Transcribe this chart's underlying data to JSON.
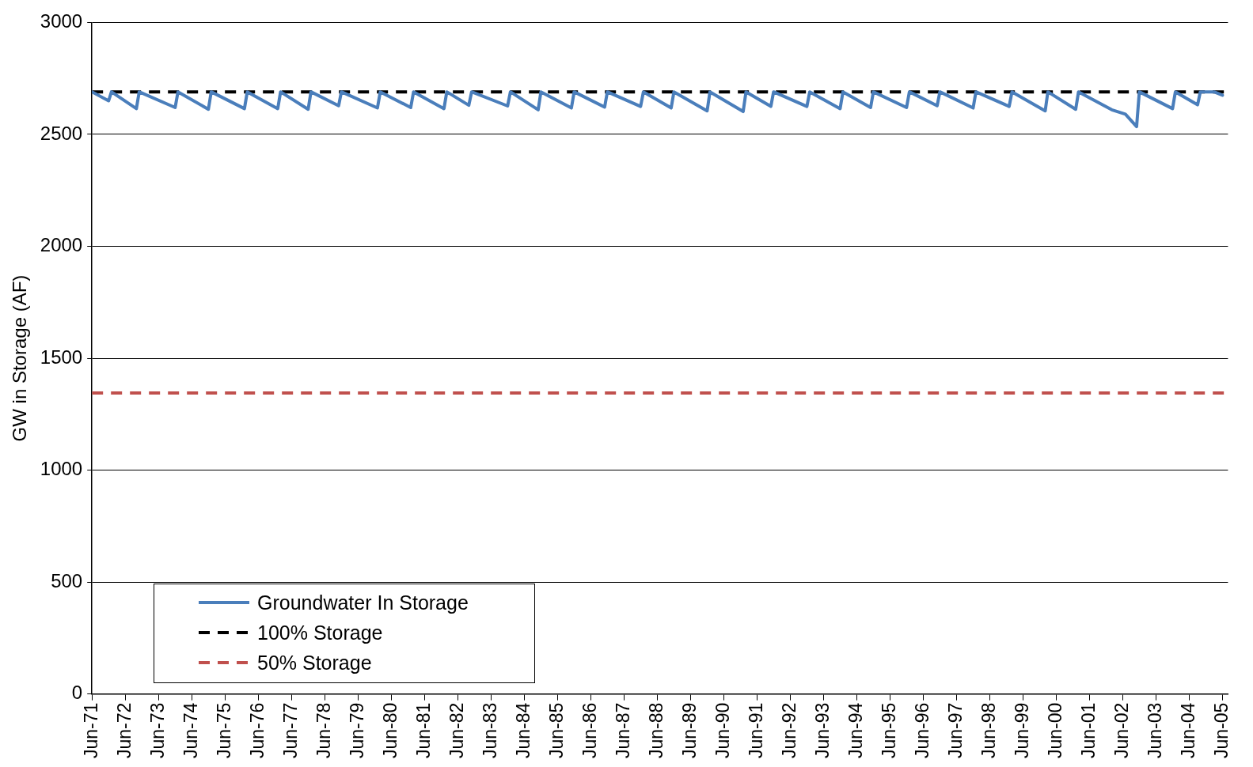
{
  "chart_data": {
    "type": "line",
    "ylabel": "GW in Storage (AF)",
    "xlim": [
      "1971-06",
      "2005-08"
    ],
    "ylim": [
      0,
      3000
    ],
    "yticks": [
      0,
      500,
      1000,
      1500,
      2000,
      2500,
      3000
    ],
    "xticks": [
      {
        "value": "1971-06",
        "label": "Jun-71"
      },
      {
        "value": "1972-06",
        "label": "Jun-72"
      },
      {
        "value": "1973-06",
        "label": "Jun-73"
      },
      {
        "value": "1974-06",
        "label": "Jun-74"
      },
      {
        "value": "1975-06",
        "label": "Jun-75"
      },
      {
        "value": "1976-06",
        "label": "Jun-76"
      },
      {
        "value": "1977-06",
        "label": "Jun-77"
      },
      {
        "value": "1978-06",
        "label": "Jun-78"
      },
      {
        "value": "1979-06",
        "label": "Jun-79"
      },
      {
        "value": "1980-06",
        "label": "Jun-80"
      },
      {
        "value": "1981-06",
        "label": "Jun-81"
      },
      {
        "value": "1982-06",
        "label": "Jun-82"
      },
      {
        "value": "1983-06",
        "label": "Jun-83"
      },
      {
        "value": "1984-06",
        "label": "Jun-84"
      },
      {
        "value": "1985-06",
        "label": "Jun-85"
      },
      {
        "value": "1986-06",
        "label": "Jun-86"
      },
      {
        "value": "1987-06",
        "label": "Jun-87"
      },
      {
        "value": "1988-06",
        "label": "Jun-88"
      },
      {
        "value": "1989-06",
        "label": "Jun-89"
      },
      {
        "value": "1990-06",
        "label": "Jun-90"
      },
      {
        "value": "1991-06",
        "label": "Jun-91"
      },
      {
        "value": "1992-06",
        "label": "Jun-92"
      },
      {
        "value": "1993-06",
        "label": "Jun-93"
      },
      {
        "value": "1994-06",
        "label": "Jun-94"
      },
      {
        "value": "1995-06",
        "label": "Jun-95"
      },
      {
        "value": "1996-06",
        "label": "Jun-96"
      },
      {
        "value": "1997-06",
        "label": "Jun-97"
      },
      {
        "value": "1998-06",
        "label": "Jun-98"
      },
      {
        "value": "1999-06",
        "label": "Jun-99"
      },
      {
        "value": "2000-06",
        "label": "Jun-00"
      },
      {
        "value": "2001-06",
        "label": "Jun-01"
      },
      {
        "value": "2002-06",
        "label": "Jun-02"
      },
      {
        "value": "2003-06",
        "label": "Jun-03"
      },
      {
        "value": "2004-06",
        "label": "Jun-04"
      },
      {
        "value": "2005-06",
        "label": "Jun-05"
      }
    ],
    "grid": "y",
    "legend": "bottom left",
    "line_style": "solid",
    "marker": "none",
    "series": [
      {
        "name": "Groundwater In Storage",
        "color": "#4a7ebb",
        "x": [
          "1971-06",
          "1971-12",
          "1972-01",
          "1972-10",
          "1972-11",
          "1973-12",
          "1974-01",
          "1974-12",
          "1975-01",
          "1976-01",
          "1976-02",
          "1977-01",
          "1977-02",
          "1977-12",
          "1978-01",
          "1978-11",
          "1978-12",
          "1980-01",
          "1980-02",
          "1981-01",
          "1981-02",
          "1982-01",
          "1982-02",
          "1982-10",
          "1982-11",
          "1983-12",
          "1984-01",
          "1984-11",
          "1984-12",
          "1985-11",
          "1985-12",
          "1986-11",
          "1986-12",
          "1987-12",
          "1988-01",
          "1988-11",
          "1988-12",
          "1989-12",
          "1990-01",
          "1991-01",
          "1991-02",
          "1991-11",
          "1991-12",
          "1992-12",
          "1993-01",
          "1993-12",
          "1994-01",
          "1994-11",
          "1994-12",
          "1995-12",
          "1996-01",
          "1996-11",
          "1996-12",
          "1997-12",
          "1998-01",
          "1999-01",
          "1999-02",
          "2000-02",
          "2000-03",
          "2001-01",
          "2001-02",
          "2002-02",
          "2002-07",
          "2002-11",
          "2002-12",
          "2003-12",
          "2004-01",
          "2004-09",
          "2004-10",
          "2005-03",
          "2005-06"
        ],
        "values": [
          2690,
          2650,
          2690,
          2615,
          2690,
          2620,
          2690,
          2612,
          2690,
          2615,
          2690,
          2615,
          2690,
          2612,
          2690,
          2628,
          2690,
          2618,
          2690,
          2620,
          2690,
          2615,
          2690,
          2630,
          2690,
          2627,
          2690,
          2610,
          2690,
          2618,
          2690,
          2622,
          2690,
          2625,
          2690,
          2618,
          2690,
          2605,
          2690,
          2602,
          2690,
          2625,
          2690,
          2625,
          2690,
          2615,
          2690,
          2620,
          2690,
          2620,
          2690,
          2628,
          2690,
          2618,
          2690,
          2625,
          2690,
          2605,
          2690,
          2612,
          2690,
          2610,
          2590,
          2535,
          2690,
          2615,
          2690,
          2632,
          2690,
          2690,
          2675
        ]
      }
    ],
    "ref_lines": [
      {
        "axis": "y",
        "value": 2690,
        "label": "100% Storage",
        "color": "#000000",
        "line_style": "dashed"
      },
      {
        "axis": "y",
        "value": 1345,
        "label": "50% Storage",
        "color": "#c0504d",
        "line_style": "dashed"
      }
    ]
  }
}
